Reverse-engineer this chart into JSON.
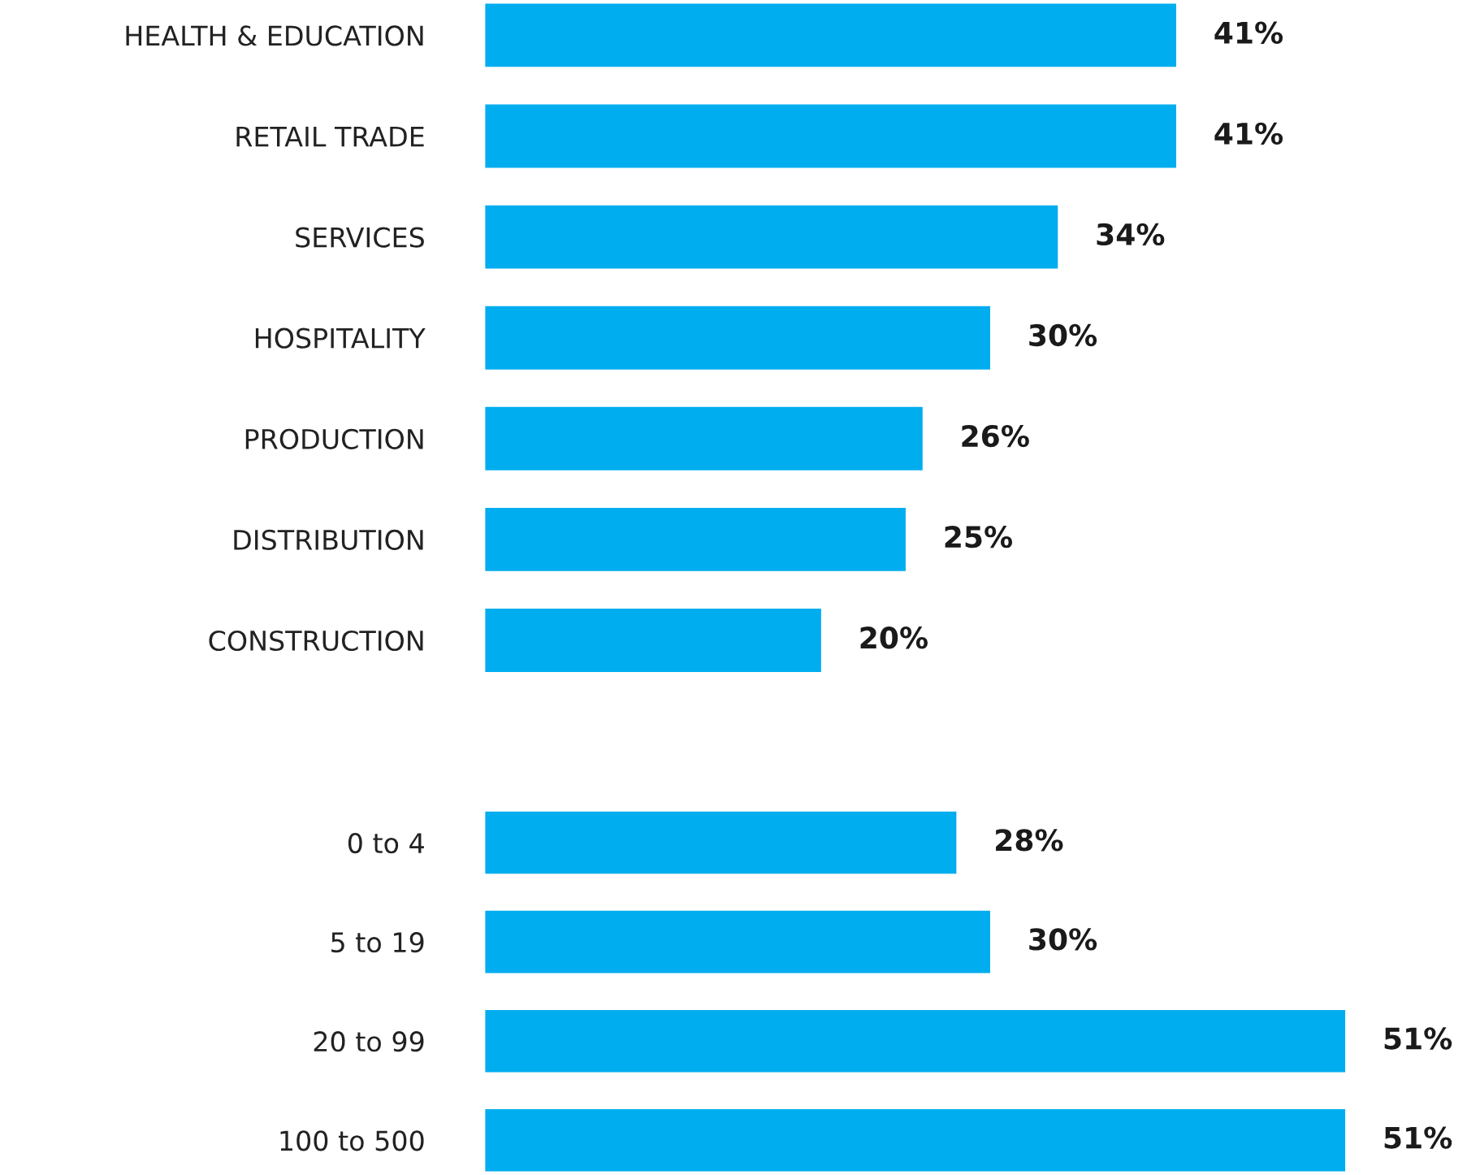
{
  "chart_data": [
    {
      "type": "bar",
      "orientation": "horizontal",
      "categories": [
        "HEALTH & EDUCATION",
        "RETAIL TRADE",
        "SERVICES",
        "HOSPITALITY",
        "PRODUCTION",
        "DISTRIBUTION",
        "CONSTRUCTION"
      ],
      "values": [
        41,
        41,
        34,
        30,
        26,
        25,
        20
      ],
      "color": "#00adef",
      "value_labels": [
        "41%",
        "41%",
        "34%",
        "30%",
        "26%",
        "25%",
        "20%"
      ],
      "grid": false,
      "legend": false
    },
    {
      "type": "bar",
      "orientation": "horizontal",
      "categories": [
        "0 to 4",
        "5 to 19",
        "20 to 99",
        "100 to 500"
      ],
      "values": [
        28,
        30,
        51,
        51
      ],
      "color": "#00adef",
      "value_labels": [
        "28%",
        "30%",
        "51%",
        "51%"
      ],
      "grid": false,
      "legend": false
    }
  ]
}
